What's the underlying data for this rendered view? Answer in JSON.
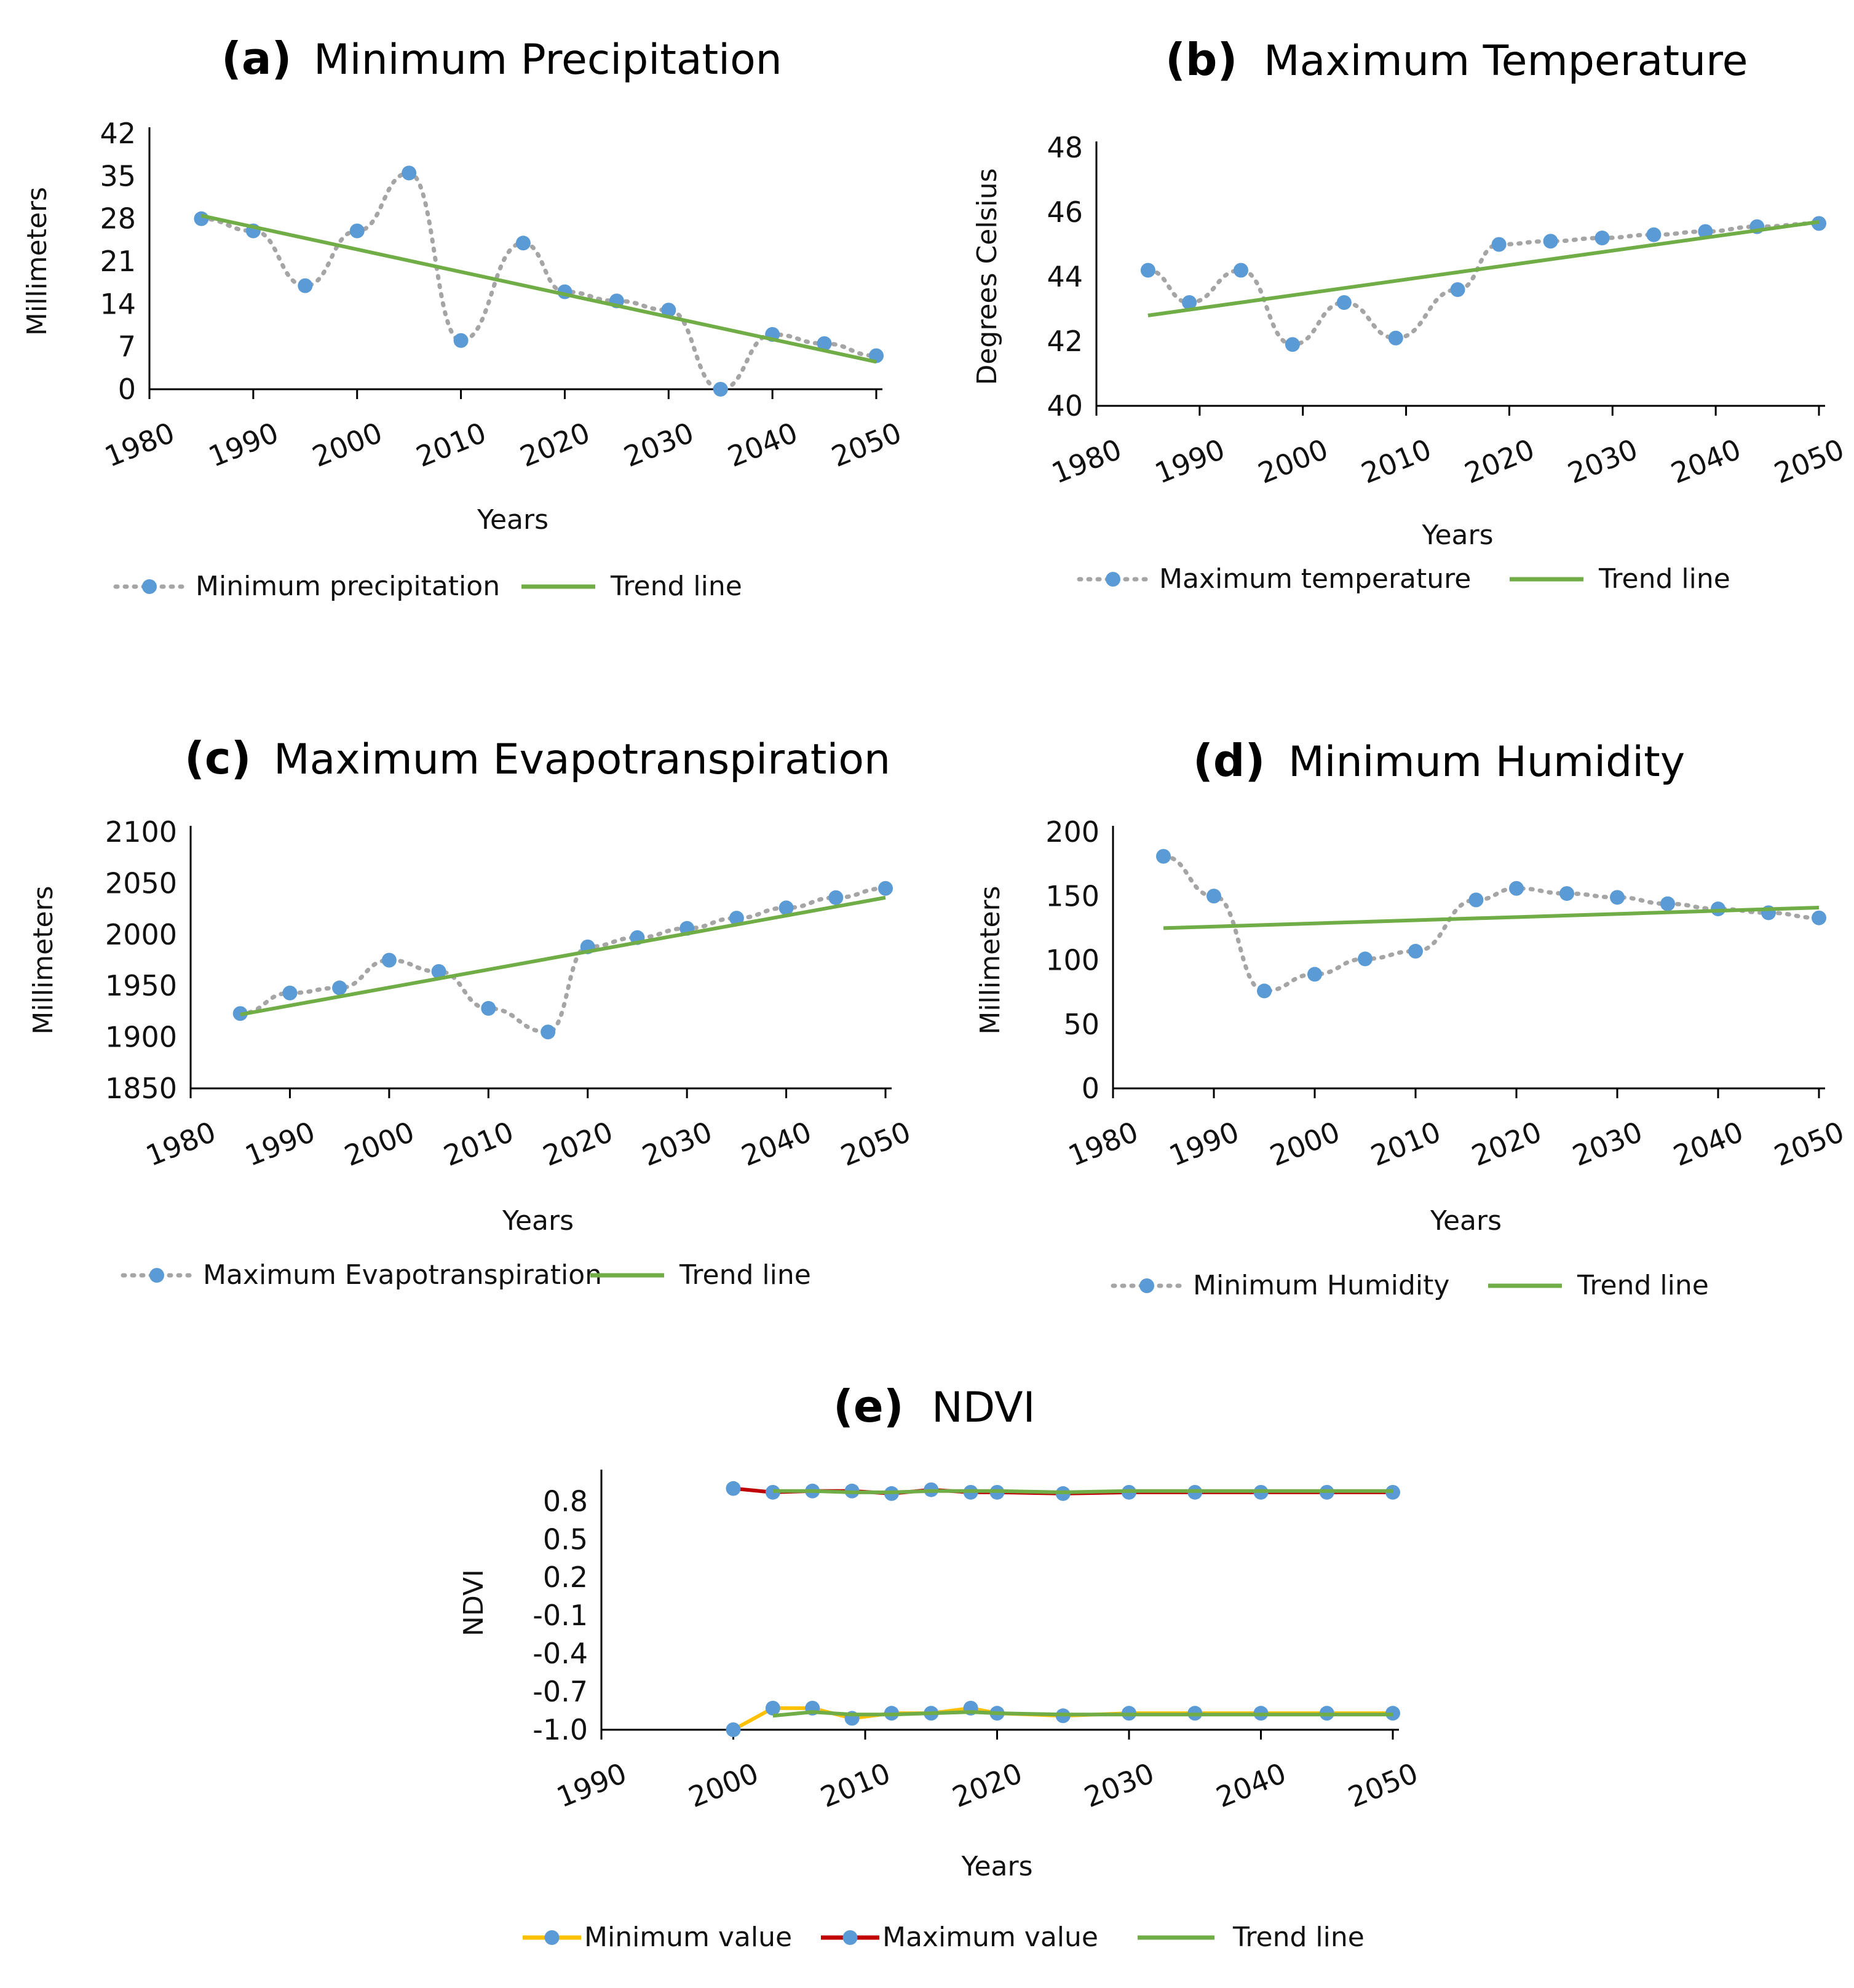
{
  "colors": {
    "point": "#5b9bd5",
    "dotted_line": "#a5a5a5",
    "trend": "#70ad47",
    "ndvi_min": "#ffc000",
    "ndvi_max": "#c00000",
    "axis": "#000000"
  },
  "chart_data": [
    {
      "id": "a",
      "type": "line",
      "letter": "(a)",
      "title": "Minimum Precipitation",
      "xlabel": "Years",
      "ylabel": "Millimeters",
      "xlim": [
        1980,
        2050
      ],
      "ylim": [
        0,
        42
      ],
      "yticks": [
        0,
        7,
        14,
        21,
        28,
        35,
        42
      ],
      "xticks": [
        1980,
        1990,
        2000,
        2010,
        2020,
        2030,
        2040,
        2050
      ],
      "series": [
        {
          "name": "Minimum precipitation",
          "style": "dotted-markers",
          "x": [
            1985,
            1990,
            1995,
            2000,
            2005,
            2010,
            2016,
            2020,
            2025,
            2030,
            2035,
            2040,
            2045,
            2050
          ],
          "y": [
            28,
            26,
            17,
            26,
            35.5,
            8,
            24,
            16,
            14.5,
            13,
            0,
            9,
            7.5,
            5.5
          ]
        },
        {
          "name": "Trend line",
          "style": "trend",
          "x": [
            1985,
            2050
          ],
          "y": [
            28.5,
            4.5
          ]
        }
      ],
      "legend": [
        "Minimum precipitation",
        "Trend line"
      ]
    },
    {
      "id": "b",
      "type": "line",
      "letter": "(b)",
      "title": "Maximum Temperature",
      "xlabel": "Years",
      "ylabel": "Degrees Celsius",
      "xlim": [
        1980,
        2050
      ],
      "ylim": [
        40,
        48
      ],
      "yticks": [
        40,
        42,
        44,
        46,
        48
      ],
      "xticks": [
        1980,
        1990,
        2000,
        2010,
        2020,
        2030,
        2040,
        2050
      ],
      "series": [
        {
          "name": "Maximum temperature",
          "style": "dotted-markers",
          "x": [
            1985,
            1989,
            1994,
            1999,
            2004,
            2009,
            2015,
            2019,
            2024,
            2029,
            2034,
            2039,
            2044,
            2050
          ],
          "y": [
            44.2,
            43.2,
            44.2,
            41.9,
            43.2,
            42.1,
            43.6,
            45,
            45.1,
            45.2,
            45.3,
            45.4,
            45.55,
            45.65
          ]
        },
        {
          "name": "Trend line",
          "style": "trend",
          "x": [
            1985,
            2050
          ],
          "y": [
            42.8,
            45.7
          ]
        }
      ],
      "legend": [
        "Maximum temperature",
        "Trend line"
      ]
    },
    {
      "id": "c",
      "type": "line",
      "letter": "(c)",
      "title": "Maximum Evapotranspiration",
      "xlabel": "Years",
      "ylabel": "Millimeters",
      "xlim": [
        1980,
        2050
      ],
      "ylim": [
        1850,
        2100
      ],
      "yticks": [
        1850,
        1900,
        1950,
        2000,
        2050,
        2100
      ],
      "xticks": [
        1980,
        1990,
        2000,
        2010,
        2020,
        2030,
        2040,
        2050
      ],
      "series": [
        {
          "name": "Maximum Evapotranspiration",
          "style": "dotted-markers",
          "x": [
            1985,
            1990,
            1995,
            2000,
            2005,
            2010,
            2016,
            2020,
            2025,
            2030,
            2035,
            2040,
            2045,
            2050
          ],
          "y": [
            1923,
            1943,
            1948,
            1975,
            1964,
            1928,
            1905,
            1988,
            1997,
            2006,
            2016,
            2026,
            2036,
            2045
          ]
        },
        {
          "name": "Trend line",
          "style": "trend",
          "x": [
            1985,
            2050
          ],
          "y": [
            1922,
            2036
          ]
        }
      ],
      "legend": [
        "Maximum Evapotranspiration",
        "Trend line"
      ]
    },
    {
      "id": "d",
      "type": "line",
      "letter": "(d)",
      "title": "Minimum Humidity",
      "xlabel": "Years",
      "ylabel": "Millimeters",
      "xlim": [
        1980,
        2050
      ],
      "ylim": [
        0,
        200
      ],
      "yticks": [
        0,
        50,
        100,
        150,
        200
      ],
      "xticks": [
        1980,
        1990,
        2000,
        2010,
        2020,
        2030,
        2040,
        2050
      ],
      "series": [
        {
          "name": "Minimum Humidity",
          "style": "dotted-markers",
          "x": [
            1985,
            1990,
            1995,
            2000,
            2005,
            2010,
            2016,
            2020,
            2025,
            2030,
            2035,
            2040,
            2045,
            2050
          ],
          "y": [
            181,
            150,
            76,
            89,
            101,
            107,
            147,
            156,
            152,
            149,
            144,
            140,
            137,
            133
          ]
        },
        {
          "name": "Trend line",
          "style": "trend",
          "x": [
            1985,
            2050
          ],
          "y": [
            125,
            141
          ]
        }
      ],
      "legend": [
        "Minimum Humidity",
        "Trend line"
      ]
    },
    {
      "id": "e",
      "type": "line",
      "letter": "(e)",
      "title": "NDVI",
      "xlabel": "Years",
      "ylabel": "NDVI",
      "xlim": [
        1990,
        2050
      ],
      "ylim": [
        -1.0,
        1.0
      ],
      "yticks": [
        -1.0,
        -0.7,
        -0.4,
        -0.1,
        0.2,
        0.5,
        0.8
      ],
      "ytick_labels": [
        "-1.0",
        "-0.7",
        "-0.4",
        "-0.1",
        "0.2",
        "0.5",
        "0.8"
      ],
      "xticks": [
        1990,
        2000,
        2010,
        2020,
        2030,
        2040,
        2050
      ],
      "series": [
        {
          "name": "Minimum value",
          "style": "solid-markers",
          "color_key": "ndvi_min",
          "x": [
            2000,
            2003,
            2006,
            2009,
            2012,
            2015,
            2018,
            2020,
            2025,
            2030,
            2035,
            2040,
            2045,
            2050
          ],
          "y": [
            -1.0,
            -0.83,
            -0.83,
            -0.91,
            -0.87,
            -0.87,
            -0.83,
            -0.87,
            -0.89,
            -0.87,
            -0.87,
            -0.87,
            -0.87,
            -0.87
          ]
        },
        {
          "name": "Maximum value",
          "style": "solid-markers",
          "color_key": "ndvi_max",
          "x": [
            2000,
            2003,
            2006,
            2009,
            2012,
            2015,
            2018,
            2020,
            2025,
            2030,
            2035,
            2040,
            2045,
            2050
          ],
          "y": [
            0.9,
            0.87,
            0.88,
            0.88,
            0.86,
            0.89,
            0.87,
            0.87,
            0.86,
            0.87,
            0.87,
            0.87,
            0.87,
            0.87
          ]
        },
        {
          "name": "Trend line",
          "style": "trend",
          "x": [
            2003,
            2006,
            2009,
            2012,
            2015,
            2018,
            2020,
            2025,
            2030,
            2035,
            2040,
            2045,
            2050
          ],
          "y": [
            -0.89,
            -0.86,
            -0.88,
            -0.88,
            -0.87,
            -0.86,
            -0.87,
            -0.88,
            -0.88,
            -0.88,
            -0.88,
            -0.88,
            -0.88
          ]
        },
        {
          "name": "Trend line",
          "style": "trend",
          "x": [
            2003,
            2006,
            2009,
            2012,
            2015,
            2018,
            2020,
            2025,
            2030,
            2035,
            2040,
            2045,
            2050
          ],
          "y": [
            0.88,
            0.88,
            0.87,
            0.87,
            0.88,
            0.88,
            0.88,
            0.87,
            0.88,
            0.88,
            0.88,
            0.88,
            0.88
          ]
        }
      ],
      "legend": [
        "Minimum value",
        "Maximum value",
        "Trend line"
      ]
    }
  ]
}
